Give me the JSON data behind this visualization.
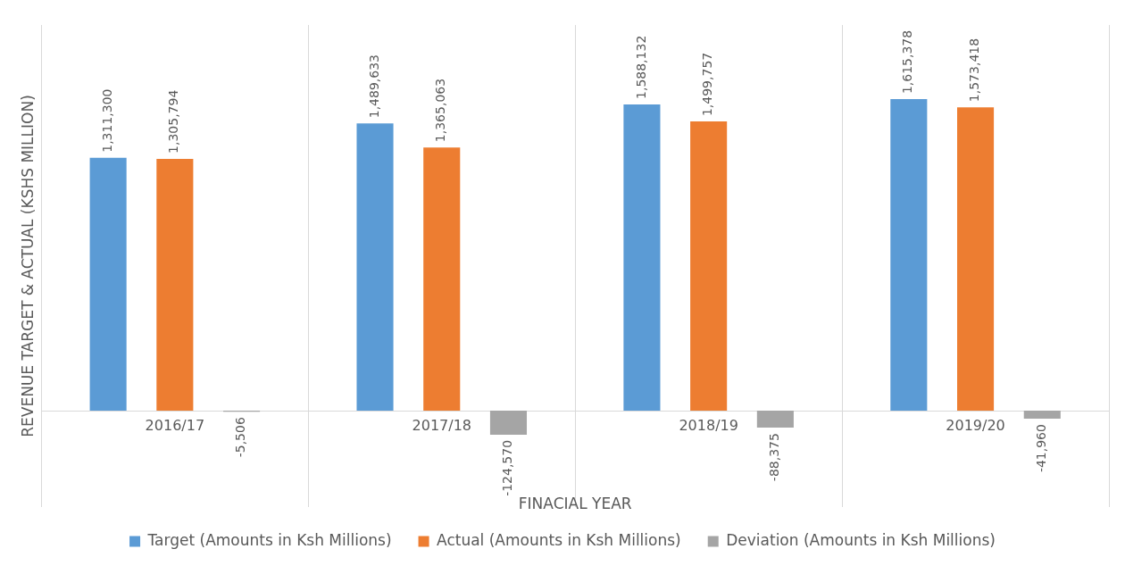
{
  "chart_data": {
    "type": "bar",
    "xlabel": "FINACIAL YEAR",
    "ylabel": "REVENUE TARGET & ACTUAL (KSHS MILLION)",
    "categories": [
      "2016/17",
      "2017/18",
      "2018/19",
      "2019/20"
    ],
    "series": [
      {
        "name": "Target (Amounts in Ksh Millions)",
        "color": "#5b9bd5",
        "values": [
          1311300,
          1489633,
          1588132,
          1615378
        ],
        "value_labels": [
          "1,311,300",
          "1,489,633",
          "1,588,132",
          "1,615,378"
        ]
      },
      {
        "name": "Actual (Amounts in Ksh Millions)",
        "color": "#ed7d31",
        "values": [
          1305794,
          1365063,
          1499757,
          1573418
        ],
        "value_labels": [
          "1,305,794",
          "1,365,063",
          "1,499,757",
          "1,573,418"
        ]
      },
      {
        "name": "Deviation (Amounts in Ksh Millions)",
        "color": "#a5a5a5",
        "values": [
          -5506,
          -124570,
          -88375,
          -41960
        ],
        "value_labels": [
          "-5,506",
          "-124,570",
          "-88,375",
          "-41,960"
        ]
      }
    ],
    "grid": "x",
    "legend": "bottom"
  }
}
